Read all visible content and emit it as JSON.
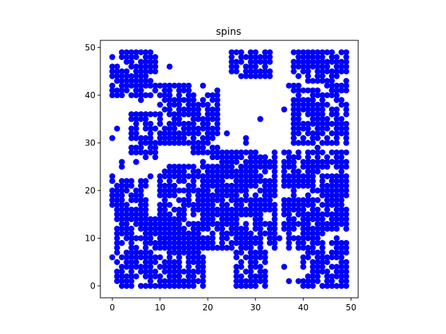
{
  "chart_data": {
    "type": "scatter",
    "title": "spins",
    "xlabel": "",
    "ylabel": "",
    "xlim": [
      -2.5,
      51.5
    ],
    "ylim": [
      -2.5,
      51.5
    ],
    "xticks": [
      0,
      10,
      20,
      30,
      40,
      50
    ],
    "yticks": [
      0,
      10,
      20,
      30,
      40,
      50
    ],
    "grid": false,
    "marker_color": "#0000ff",
    "lattice_size": 50,
    "point_regions_note_free": true,
    "regions": [
      {
        "x": [
          0,
          9
        ],
        "y": [
          40,
          49
        ]
      },
      {
        "x": [
          10,
          16
        ],
        "y": [
          30,
          42
        ]
      },
      {
        "x": [
          17,
          22
        ],
        "y": [
          28,
          40
        ]
      },
      {
        "x": [
          4,
          10
        ],
        "y": [
          28,
          36
        ]
      },
      {
        "x": [
          25,
          33
        ],
        "y": [
          44,
          49
        ]
      },
      {
        "x": [
          38,
          49
        ],
        "y": [
          30,
          49
        ]
      },
      {
        "x": [
          19,
          34
        ],
        "y": [
          8,
          28
        ]
      },
      {
        "x": [
          10,
          20
        ],
        "y": [
          8,
          25
        ]
      },
      {
        "x": [
          0,
          7
        ],
        "y": [
          15,
          22
        ]
      },
      {
        "x": [
          1,
          14
        ],
        "y": [
          0,
          14
        ]
      },
      {
        "x": [
          12,
          19
        ],
        "y": [
          0,
          8
        ]
      },
      {
        "x": [
          26,
          32
        ],
        "y": [
          0,
          7
        ]
      },
      {
        "x": [
          36,
          49
        ],
        "y": [
          12,
          28
        ]
      },
      {
        "x": [
          40,
          49
        ],
        "y": [
          0,
          9
        ]
      },
      {
        "x": [
          37,
          44
        ],
        "y": [
          8,
          12
        ]
      }
    ]
  }
}
